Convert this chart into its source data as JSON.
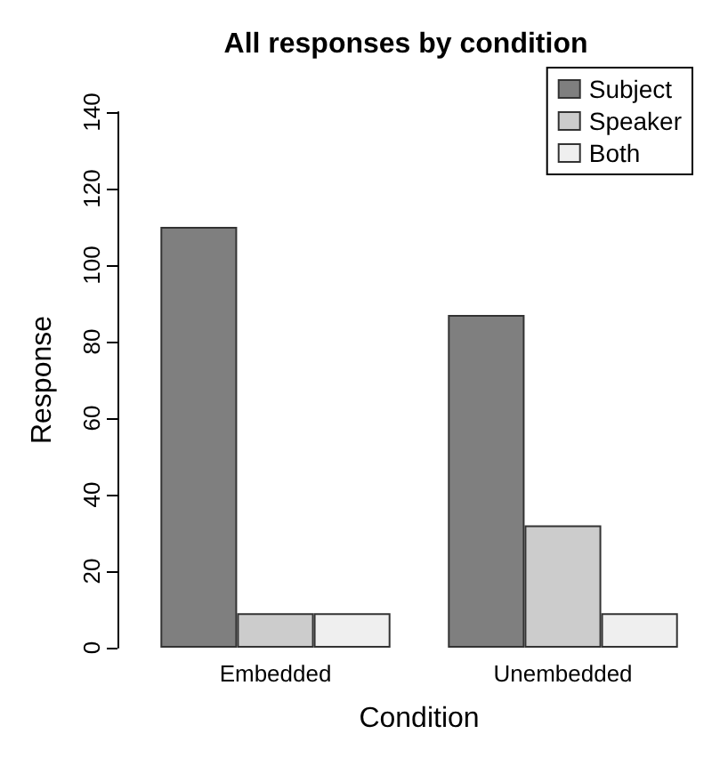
{
  "chart_data": {
    "type": "bar",
    "title": "All responses by condition",
    "xlabel": "Condition",
    "ylabel": "Response",
    "categories": [
      "Embedded",
      "Unembedded"
    ],
    "series": [
      {
        "name": "Subject",
        "color": "#7f7f7f",
        "values": [
          110,
          87
        ]
      },
      {
        "name": "Speaker",
        "color": "#cccccc",
        "values": [
          9,
          32
        ]
      },
      {
        "name": "Both",
        "color": "#efefef",
        "values": [
          9,
          9
        ]
      }
    ],
    "ylim": [
      0,
      140
    ],
    "yticks": [
      0,
      20,
      40,
      60,
      80,
      100,
      120,
      140
    ],
    "grid": false,
    "legend": "top right"
  }
}
